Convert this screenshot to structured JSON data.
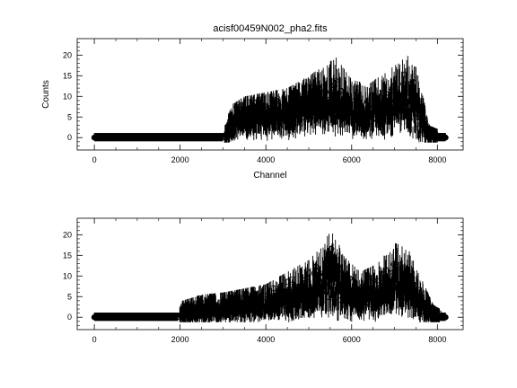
{
  "figure": {
    "title": "acisf00459N002_pha2.fits"
  },
  "chart_data": [
    {
      "type": "scatter",
      "title": "acisf00459N002_pha2.fits",
      "xlabel": "Channel",
      "ylabel": "Counts",
      "xlim": [
        -400,
        8600
      ],
      "ylim": [
        -3,
        24
      ],
      "xticks": [
        0,
        2000,
        4000,
        6000,
        8000
      ],
      "yticks": [
        0,
        5,
        10,
        15,
        20
      ],
      "grid": false,
      "series": [
        {
          "marker": "circle",
          "error_bars": true,
          "envelope": [
            {
              "x": 0,
              "mean": 0,
              "max": 1.2
            },
            {
              "x": 3000,
              "mean": 0,
              "max": 1.2
            },
            {
              "x": 3100,
              "mean": 1.5,
              "max": 5
            },
            {
              "x": 3200,
              "mean": 4,
              "max": 8
            },
            {
              "x": 3500,
              "mean": 5,
              "max": 10
            },
            {
              "x": 4000,
              "mean": 5.5,
              "max": 11
            },
            {
              "x": 4500,
              "mean": 6,
              "max": 12
            },
            {
              "x": 5000,
              "mean": 8,
              "max": 15
            },
            {
              "x": 5300,
              "mean": 9,
              "max": 17
            },
            {
              "x": 5600,
              "mean": 9.5,
              "max": 20
            },
            {
              "x": 6000,
              "mean": 7,
              "max": 14
            },
            {
              "x": 6400,
              "mean": 6.5,
              "max": 13
            },
            {
              "x": 6800,
              "mean": 8,
              "max": 16
            },
            {
              "x": 7200,
              "mean": 10,
              "max": 19
            },
            {
              "x": 7400,
              "mean": 9,
              "max": 21
            },
            {
              "x": 7600,
              "mean": 5,
              "max": 13
            },
            {
              "x": 7800,
              "mean": 1,
              "max": 3
            },
            {
              "x": 8190,
              "mean": 0,
              "max": 1.2
            }
          ]
        }
      ]
    },
    {
      "type": "scatter",
      "title": "",
      "xlabel": "",
      "ylabel": "",
      "xlim": [
        -400,
        8600
      ],
      "ylim": [
        -3,
        24
      ],
      "xticks": [
        0,
        2000,
        4000,
        6000,
        8000
      ],
      "yticks": [
        0,
        5,
        10,
        15,
        20
      ],
      "grid": false,
      "series": [
        {
          "marker": "circle",
          "error_bars": true,
          "envelope": [
            {
              "x": 0,
              "mean": 0,
              "max": 1.2
            },
            {
              "x": 1950,
              "mean": 0,
              "max": 1.2
            },
            {
              "x": 2050,
              "mean": 1.5,
              "max": 4
            },
            {
              "x": 2500,
              "mean": 2,
              "max": 5.5
            },
            {
              "x": 3000,
              "mean": 2.5,
              "max": 6
            },
            {
              "x": 3500,
              "mean": 3,
              "max": 7
            },
            {
              "x": 4000,
              "mean": 3.5,
              "max": 8
            },
            {
              "x": 4500,
              "mean": 5,
              "max": 11
            },
            {
              "x": 5000,
              "mean": 7,
              "max": 14
            },
            {
              "x": 5400,
              "mean": 9,
              "max": 19
            },
            {
              "x": 5600,
              "mean": 10,
              "max": 23
            },
            {
              "x": 5800,
              "mean": 7,
              "max": 15
            },
            {
              "x": 6200,
              "mean": 5,
              "max": 11
            },
            {
              "x": 6600,
              "mean": 6,
              "max": 13
            },
            {
              "x": 7000,
              "mean": 9,
              "max": 18
            },
            {
              "x": 7300,
              "mean": 8,
              "max": 17
            },
            {
              "x": 7600,
              "mean": 4,
              "max": 10
            },
            {
              "x": 7900,
              "mean": 1,
              "max": 3
            },
            {
              "x": 8190,
              "mean": 0,
              "max": 1.2
            }
          ]
        }
      ]
    }
  ]
}
